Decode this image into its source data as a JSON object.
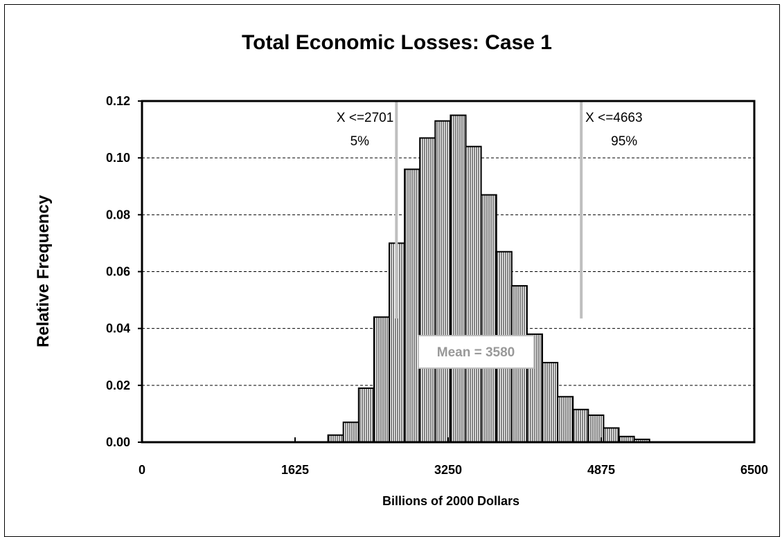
{
  "colors": {
    "bar_fill_pattern": "vertical-hatch",
    "bar_stroke": "#000000",
    "marker_line": "#bfbfbf",
    "mean_text": "#999999",
    "grid": "#000000",
    "background": "#ffffff"
  },
  "chart_data": {
    "type": "bar",
    "title": "Total Economic Losses: Case 1",
    "xlabel": "Billions of 2000 Dollars",
    "ylabel": "Relative Frequency",
    "xlim": [
      0,
      6500
    ],
    "ylim": [
      0,
      0.12
    ],
    "x_ticks": [
      "0",
      "1625",
      "3250",
      "4875",
      "6500"
    ],
    "x_tick_values": [
      0,
      1625,
      3250,
      4875,
      6500
    ],
    "y_ticks": [
      "0.00",
      "0.02",
      "0.04",
      "0.06",
      "0.08",
      "0.10",
      "0.12"
    ],
    "y_tick_values": [
      0,
      0.02,
      0.04,
      0.06,
      0.08,
      0.1,
      0.12
    ],
    "grid": "horizontal-dashed",
    "bin_edges": [
      1975,
      2137.5,
      2300,
      2462.5,
      2625,
      2787.5,
      2950,
      3112.5,
      3275,
      3437.5,
      3600,
      3762.5,
      3925,
      4087.5,
      4250,
      4412.5,
      4575,
      4737.5,
      4900,
      5062.5,
      5225,
      5387.5,
      5550,
      5712.5
    ],
    "values": [
      0.0025,
      0.007,
      0.019,
      0.044,
      0.07,
      0.096,
      0.107,
      0.113,
      0.115,
      0.104,
      0.087,
      0.067,
      0.055,
      0.038,
      0.028,
      0.016,
      0.0115,
      0.0095,
      0.005,
      0.002,
      0.001,
      0,
      0
    ],
    "markers": [
      {
        "x": 2701,
        "label_line1": "X <=2701",
        "label_line2": "5%"
      },
      {
        "x": 4663,
        "label_line1": "X <=4663",
        "label_line2": "95%"
      }
    ],
    "mean": {
      "value": 3580,
      "label": "Mean = 3580"
    }
  }
}
